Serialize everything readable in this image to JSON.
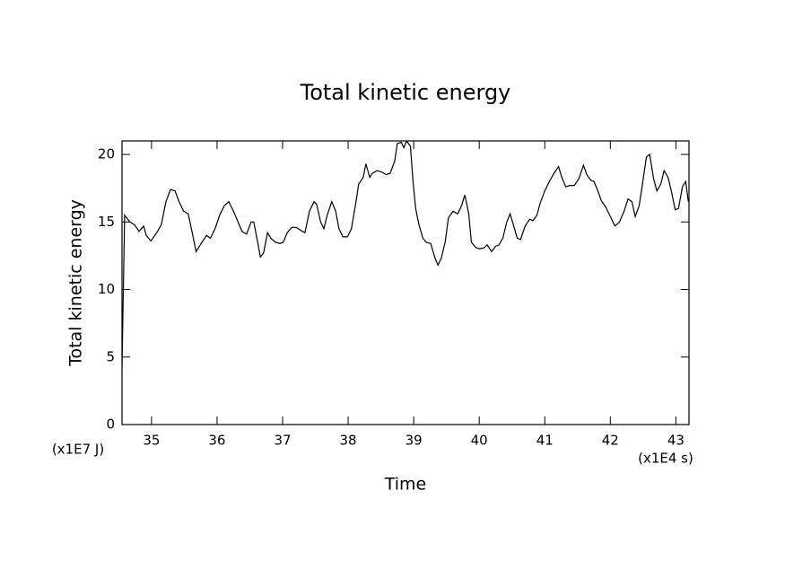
{
  "chart_data": {
    "type": "line",
    "title": "Total kinetic energy",
    "xlabel": "Time",
    "ylabel": "Total kinetic energy",
    "x_unit_label": "(x1E4 s)",
    "y_unit_label": "(x1E7 J)",
    "xlim": [
      34.55,
      43.2
    ],
    "ylim": [
      0,
      21
    ],
    "xticks": [
      35,
      36,
      37,
      38,
      39,
      40,
      41,
      42,
      43
    ],
    "yticks": [
      0,
      5,
      10,
      15,
      20
    ],
    "grid": false,
    "series": [
      {
        "color": "#000000",
        "x": [
          34.55,
          34.59,
          34.67,
          34.74,
          34.81,
          34.88,
          34.92,
          34.99,
          35.08,
          35.15,
          35.22,
          35.29,
          35.36,
          35.42,
          35.49,
          35.56,
          35.63,
          35.68,
          35.77,
          35.84,
          35.9,
          35.97,
          36.04,
          36.11,
          36.18,
          36.25,
          36.32,
          36.38,
          36.45,
          36.52,
          36.56,
          36.62,
          36.66,
          36.71,
          36.77,
          36.82,
          36.89,
          36.96,
          37.01,
          37.07,
          37.14,
          37.21,
          37.27,
          37.34,
          37.41,
          37.48,
          37.52,
          37.58,
          37.63,
          37.68,
          37.75,
          37.81,
          37.86,
          37.92,
          37.99,
          38.05,
          38.12,
          38.16,
          38.23,
          38.27,
          38.33,
          38.37,
          38.44,
          38.51,
          38.58,
          38.64,
          38.71,
          38.75,
          38.81,
          38.85,
          38.89,
          38.95,
          38.99,
          39.03,
          39.08,
          39.14,
          39.19,
          39.26,
          39.32,
          39.37,
          39.42,
          39.48,
          39.53,
          39.6,
          39.67,
          39.73,
          39.78,
          39.84,
          39.88,
          39.95,
          40.01,
          40.08,
          40.12,
          40.19,
          40.25,
          40.3,
          40.36,
          40.42,
          40.47,
          40.52,
          40.58,
          40.63,
          40.7,
          40.77,
          40.82,
          40.88,
          40.93,
          41.0,
          41.07,
          41.14,
          41.21,
          41.26,
          41.32,
          41.38,
          41.45,
          41.52,
          41.59,
          41.64,
          41.7,
          41.75,
          41.81,
          41.86,
          41.93,
          42.0,
          42.07,
          42.14,
          42.21,
          42.27,
          42.33,
          42.38,
          42.44,
          42.49,
          42.55,
          42.6,
          42.66,
          42.71,
          42.77,
          42.82,
          42.88,
          42.93,
          42.99,
          43.04,
          43.1,
          43.15,
          43.19
        ],
        "values": [
          4.2,
          15.5,
          15.0,
          14.8,
          14.3,
          14.7,
          14.0,
          13.6,
          14.2,
          14.8,
          16.5,
          17.4,
          17.3,
          16.5,
          15.8,
          15.6,
          14.0,
          12.8,
          13.5,
          14.0,
          13.8,
          14.5,
          15.5,
          16.2,
          16.5,
          15.8,
          15.0,
          14.3,
          14.1,
          15.0,
          15.0,
          13.5,
          12.4,
          12.7,
          14.2,
          13.8,
          13.5,
          13.4,
          13.5,
          14.2,
          14.6,
          14.6,
          14.4,
          14.2,
          15.8,
          16.5,
          16.3,
          15.0,
          14.5,
          15.5,
          16.5,
          15.8,
          14.5,
          13.9,
          13.9,
          14.5,
          16.5,
          17.8,
          18.3,
          19.3,
          18.3,
          18.6,
          18.8,
          18.7,
          18.5,
          18.6,
          19.5,
          20.8,
          20.9,
          20.5,
          21.0,
          20.6,
          18.0,
          16.0,
          14.8,
          13.8,
          13.5,
          13.4,
          12.4,
          11.8,
          12.3,
          13.5,
          15.3,
          15.8,
          15.6,
          16.2,
          17.0,
          15.6,
          13.5,
          13.1,
          13.0,
          13.1,
          13.3,
          12.8,
          13.2,
          13.3,
          13.8,
          15.0,
          15.6,
          14.8,
          13.8,
          13.7,
          14.7,
          15.2,
          15.1,
          15.5,
          16.4,
          17.3,
          18.0,
          18.6,
          19.1,
          18.3,
          17.6,
          17.7,
          17.7,
          18.2,
          19.2,
          18.5,
          18.1,
          18.0,
          17.3,
          16.6,
          16.1,
          15.4,
          14.7,
          15.0,
          15.8,
          16.7,
          16.5,
          15.4,
          16.2,
          17.8,
          19.8,
          20.0,
          18.2,
          17.3,
          17.8,
          18.8,
          18.3,
          17.3,
          15.9,
          16.0,
          17.6,
          18.0,
          16.5
        ]
      }
    ]
  }
}
